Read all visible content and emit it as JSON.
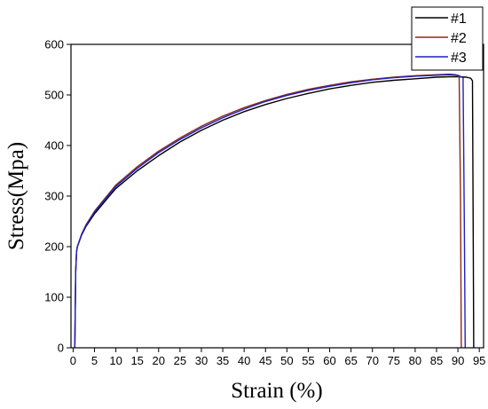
{
  "chart_data": {
    "type": "line",
    "xlabel": "Strain (%)",
    "ylabel": "Stress(Mpa)",
    "xlim": [
      -0.5,
      96
    ],
    "ylim": [
      0,
      600
    ],
    "x_ticks": [
      0,
      5,
      10,
      15,
      20,
      25,
      30,
      35,
      40,
      45,
      50,
      55,
      60,
      65,
      70,
      75,
      80,
      85,
      90,
      95
    ],
    "y_ticks": [
      0,
      100,
      200,
      300,
      400,
      500,
      600
    ],
    "legend_position": "top-right",
    "series": [
      {
        "name": "#1",
        "color": "#000000",
        "x": [
          0.4,
          0.6,
          0.8,
          1,
          2,
          3,
          5,
          7.5,
          10,
          15,
          20,
          25,
          30,
          35,
          40,
          45,
          50,
          55,
          60,
          65,
          70,
          75,
          80,
          85,
          88,
          90,
          92,
          93,
          93.4,
          93.6,
          93.7
        ],
        "y": [
          0,
          150,
          190,
          200,
          223,
          240,
          265,
          290,
          315,
          350,
          380,
          407,
          430,
          450,
          467,
          481,
          493,
          503,
          512,
          519,
          525,
          529,
          532,
          535,
          536,
          536,
          535,
          533,
          528,
          200,
          0
        ]
      },
      {
        "name": "#2",
        "color": "#8b2a1a",
        "x": [
          0.4,
          0.6,
          0.8,
          1,
          2,
          3,
          5,
          7.5,
          10,
          15,
          20,
          25,
          30,
          35,
          40,
          45,
          50,
          55,
          60,
          65,
          70,
          75,
          80,
          85,
          88,
          89.5,
          90.3,
          90.6,
          90.8
        ],
        "y": [
          0,
          150,
          190,
          200,
          225,
          243,
          270,
          296,
          322,
          358,
          389,
          415,
          438,
          458,
          475,
          489,
          501,
          511,
          519,
          526,
          531,
          535,
          538,
          540,
          541,
          540,
          535,
          300,
          0
        ]
      },
      {
        "name": "#3",
        "color": "#2020c0",
        "x": [
          0.4,
          0.6,
          0.8,
          1,
          2,
          3,
          5,
          7.5,
          10,
          15,
          20,
          25,
          30,
          35,
          40,
          45,
          50,
          55,
          60,
          65,
          70,
          75,
          80,
          85,
          88,
          90,
          91.2,
          91.5,
          91.7
        ],
        "y": [
          0,
          150,
          190,
          200,
          224,
          242,
          268,
          294,
          319,
          355,
          386,
          412,
          435,
          455,
          472,
          487,
          499,
          509,
          517,
          524,
          530,
          534,
          537,
          539,
          540,
          539,
          534,
          250,
          0
        ]
      }
    ]
  }
}
